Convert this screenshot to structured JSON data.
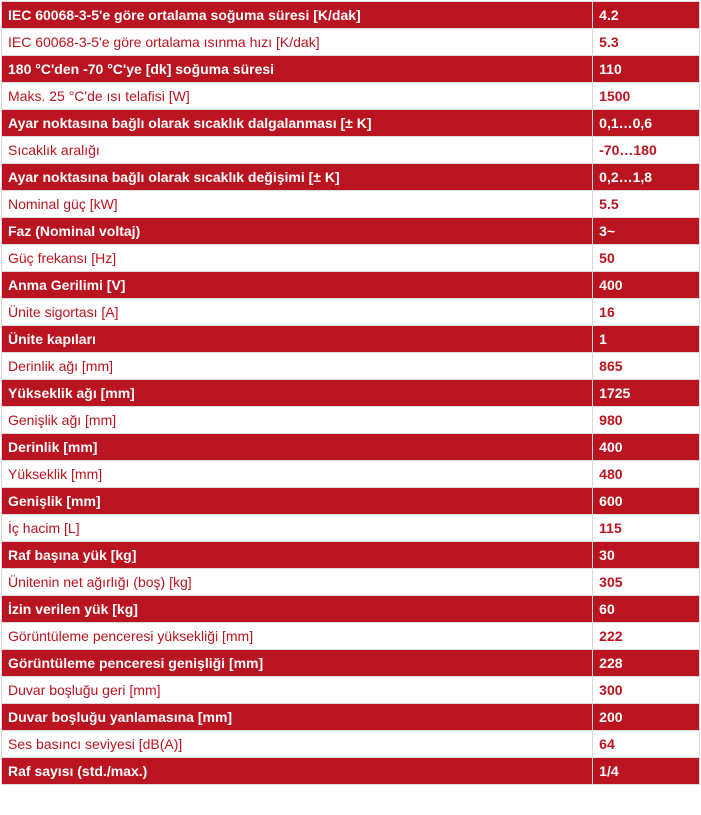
{
  "specs": [
    {
      "label": "IEC 60068-3-5'e göre ortalama soğuma süresi [K/dak]",
      "value": "4.2"
    },
    {
      "label": "IEC 60068-3-5'e göre ortalama ısınma hızı [K/dak]",
      "value": "5.3"
    },
    {
      "label": "180 °C'den -70 °C'ye [dk] soğuma süresi",
      "value": "110"
    },
    {
      "label": "Maks. 25 °C'de ısı telafisi [W]",
      "value": "1500"
    },
    {
      "label": "Ayar noktasına bağlı olarak sıcaklık dalgalanması [± K]",
      "value": "0,1…0,6"
    },
    {
      "label": "Sıcaklık aralığı",
      "value": "-70…180"
    },
    {
      "label": "Ayar noktasına bağlı olarak sıcaklık değişimi [± K]",
      "value": "0,2…1,8"
    },
    {
      "label": "Nominal güç [kW]",
      "value": "5.5"
    },
    {
      "label": "Faz (Nominal voltaj)",
      "value": "3~"
    },
    {
      "label": "Güç frekansı [Hz]",
      "value": "50"
    },
    {
      "label": "Anma Gerilimi [V]",
      "value": "400"
    },
    {
      "label": "Ünite sigortası [A]",
      "value": "16"
    },
    {
      "label": "Ünite kapıları",
      "value": "1"
    },
    {
      "label": "Derinlik ağı [mm]",
      "value": "865"
    },
    {
      "label": "Yükseklik ağı [mm]",
      "value": "1725"
    },
    {
      "label": "Genişlik ağı [mm]",
      "value": "980"
    },
    {
      "label": "Derinlik [mm]",
      "value": "400"
    },
    {
      "label": "Yükseklik [mm]",
      "value": "480"
    },
    {
      "label": "Genişlik [mm]",
      "value": "600"
    },
    {
      "label": "İç hacim [L]",
      "value": "115"
    },
    {
      "label": "Raf başına yük [kg]",
      "value": "30"
    },
    {
      "label": "Ünitenin net ağırlığı (boş) [kg]",
      "value": "305"
    },
    {
      "label": "İzin verilen yük [kg]",
      "value": "60"
    },
    {
      "label": "Görüntüleme penceresi yüksekliği [mm]",
      "value": "222"
    },
    {
      "label": "Görüntüleme penceresi genişliği [mm]",
      "value": "228"
    },
    {
      "label": "Duvar boşluğu geri [mm]",
      "value": "300"
    },
    {
      "label": "Duvar boşluğu yanlamasına [mm]",
      "value": "200"
    },
    {
      "label": "Ses basıncı seviyesi [dB(A)]",
      "value": "64"
    },
    {
      "label": "Raf sayısı (std./max.)",
      "value": "1/4"
    }
  ],
  "colors": {
    "accent": "#b9141f",
    "alt_background": "#ffffff",
    "border": "#d9d9d9"
  }
}
